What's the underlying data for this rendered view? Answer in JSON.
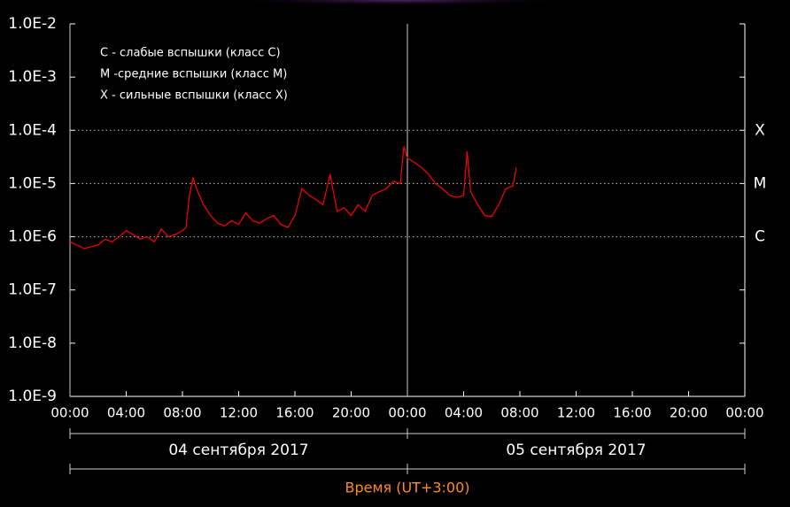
{
  "chart_data": {
    "type": "line",
    "log_scale": true,
    "x_title": "Время (UT+3:00)",
    "notes": [
      "C - слабые вспышки (класс C)",
      "M -средние вспышки (класс M)",
      "X - сильные вспышки (класс X)"
    ],
    "days": [
      {
        "start": 0,
        "end": 24,
        "label": "04 сентября 2017"
      },
      {
        "start": 24,
        "end": 48,
        "label": "05 сентября 2017"
      }
    ],
    "class_lines": [
      {
        "value": 0.0001,
        "label": "X"
      },
      {
        "value": 1e-05,
        "label": "M"
      },
      {
        "value": 1e-06,
        "label": "C"
      }
    ],
    "xlim": [
      0,
      48
    ],
    "xticks": [
      {
        "value": 0,
        "label": "00:00"
      },
      {
        "value": 4,
        "label": "04:00"
      },
      {
        "value": 8,
        "label": "08:00"
      },
      {
        "value": 12,
        "label": "12:00"
      },
      {
        "value": 16,
        "label": "16:00"
      },
      {
        "value": 20,
        "label": "20:00"
      },
      {
        "value": 24,
        "label": "00:00"
      },
      {
        "value": 28,
        "label": "04:00"
      },
      {
        "value": 32,
        "label": "08:00"
      },
      {
        "value": 36,
        "label": "12:00"
      },
      {
        "value": 40,
        "label": "16:00"
      },
      {
        "value": 44,
        "label": "20:00"
      },
      {
        "value": 48,
        "label": "00:00"
      }
    ],
    "ylim": [
      1e-09,
      0.01
    ],
    "yticks": [
      {
        "value": 1e-09,
        "label": "1.0E-9"
      },
      {
        "value": 1e-08,
        "label": "1.0E-8"
      },
      {
        "value": 1e-07,
        "label": "1.0E-7"
      },
      {
        "value": 1e-06,
        "label": "1.0E-6"
      },
      {
        "value": 1e-05,
        "label": "1.0E-5"
      },
      {
        "value": 0.0001,
        "label": "1.0E-4"
      },
      {
        "value": 0.001,
        "label": "1.0E-3"
      },
      {
        "value": 0.01,
        "label": "1.0E-2"
      }
    ],
    "series": [
      {
        "color": "#ff0000",
        "x": [
          0,
          0.5,
          1,
          1.5,
          2,
          2.5,
          3,
          3.5,
          4,
          4.5,
          5,
          5.5,
          6,
          6.5,
          7,
          7.5,
          8,
          8.25,
          8.5,
          8.75,
          9,
          9.5,
          10,
          10.5,
          11,
          11.5,
          12,
          12.5,
          13,
          13.5,
          14,
          14.5,
          15,
          15.5,
          16,
          16.5,
          17,
          17.5,
          18,
          18.5,
          19,
          19.5,
          20,
          20.5,
          21,
          21.5,
          22,
          22.5,
          23,
          23.5,
          23.75,
          24,
          24.5,
          25,
          25.5,
          26,
          26.5,
          27,
          27.5,
          28,
          28.25,
          28.5,
          29,
          29.5,
          30,
          30.5,
          31,
          31.5,
          31.75
        ],
        "values": [
          8e-07,
          7e-07,
          6e-07,
          6.5e-07,
          7e-07,
          9e-07,
          8e-07,
          1e-06,
          1.3e-06,
          1.1e-06,
          9e-07,
          1e-06,
          8e-07,
          1.4e-06,
          1e-06,
          1.1e-06,
          1.3e-06,
          1.5e-06,
          6e-06,
          1.3e-05,
          8e-06,
          4e-06,
          2.5e-06,
          1.8e-06,
          1.6e-06,
          2e-06,
          1.7e-06,
          2.8e-06,
          2e-06,
          1.8e-06,
          2.2e-06,
          2.5e-06,
          1.7e-06,
          1.5e-06,
          2.5e-06,
          8e-06,
          6e-06,
          5e-06,
          4e-06,
          1.5e-05,
          3e-06,
          3.5e-06,
          2.5e-06,
          4e-06,
          3e-06,
          6e-06,
          7e-06,
          8e-06,
          1.1e-05,
          1e-05,
          5e-05,
          3e-05,
          2.5e-05,
          2e-05,
          1.5e-05,
          1e-05,
          8e-06,
          6e-06,
          5.5e-06,
          6e-06,
          4e-05,
          7e-06,
          4e-06,
          2.5e-06,
          2.4e-06,
          4e-06,
          8e-06,
          9e-06,
          2e-05
        ]
      }
    ]
  }
}
